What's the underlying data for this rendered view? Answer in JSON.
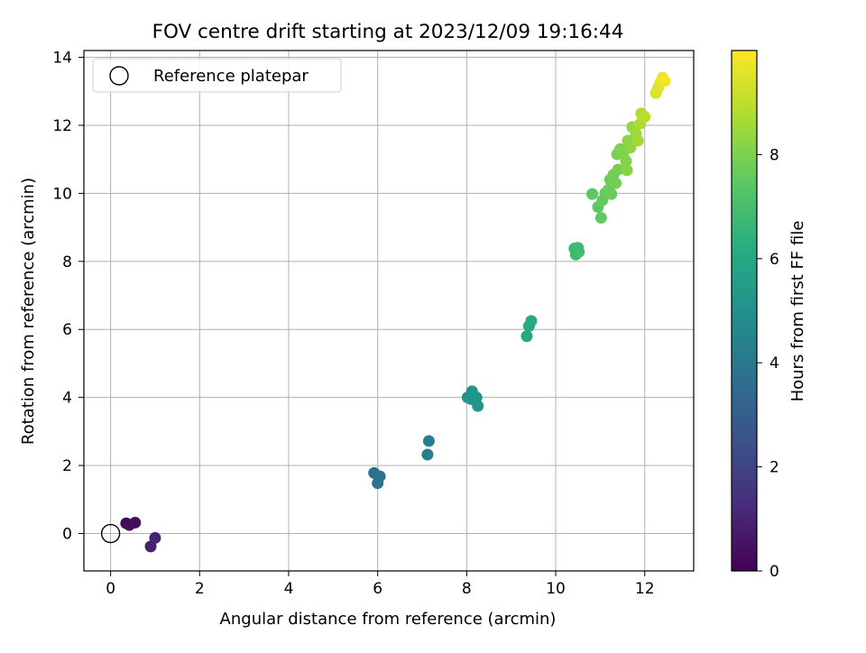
{
  "chart_data": {
    "type": "scatter",
    "title": "FOV centre drift starting at 2023/12/09 19:16:44",
    "xlabel": "Angular distance from reference (arcmin)",
    "ylabel": "Rotation from reference (arcmin)",
    "xlim": [
      -0.6,
      13.1
    ],
    "ylim": [
      -1.1,
      14.2
    ],
    "xticks": [
      0,
      2,
      4,
      6,
      8,
      10,
      12
    ],
    "yticks": [
      0,
      2,
      4,
      6,
      8,
      10,
      12,
      14
    ],
    "grid": true,
    "legend": {
      "position": "top-left",
      "entries": [
        "Reference platepar"
      ]
    },
    "reference": {
      "x": 0,
      "y": 0
    },
    "colorbar": {
      "label": "Hours from first FF file",
      "range": [
        0,
        10
      ],
      "ticks": [
        0,
        2,
        4,
        6,
        8
      ],
      "colormap": "viridis"
    },
    "points": [
      {
        "x": 0.35,
        "y": 0.3,
        "c": 0.2
      },
      {
        "x": 0.42,
        "y": 0.25,
        "c": 0.3
      },
      {
        "x": 0.55,
        "y": 0.32,
        "c": 0.4
      },
      {
        "x": 0.9,
        "y": -0.38,
        "c": 0.9
      },
      {
        "x": 1.0,
        "y": -0.13,
        "c": 1.0
      },
      {
        "x": 5.92,
        "y": 1.78,
        "c": 3.6
      },
      {
        "x": 6.05,
        "y": 1.68,
        "c": 3.7
      },
      {
        "x": 6.0,
        "y": 1.48,
        "c": 3.8
      },
      {
        "x": 7.15,
        "y": 2.72,
        "c": 4.2
      },
      {
        "x": 7.12,
        "y": 2.32,
        "c": 4.3
      },
      {
        "x": 8.02,
        "y": 4.0,
        "c": 5.0
      },
      {
        "x": 8.12,
        "y": 4.18,
        "c": 5.05
      },
      {
        "x": 8.22,
        "y": 4.0,
        "c": 5.1
      },
      {
        "x": 8.25,
        "y": 3.75,
        "c": 5.15
      },
      {
        "x": 8.1,
        "y": 3.95,
        "c": 5.2
      },
      {
        "x": 9.35,
        "y": 5.8,
        "c": 5.9
      },
      {
        "x": 9.4,
        "y": 6.1,
        "c": 6.0
      },
      {
        "x": 9.45,
        "y": 6.25,
        "c": 6.05
      },
      {
        "x": 10.42,
        "y": 8.38,
        "c": 6.7
      },
      {
        "x": 10.5,
        "y": 8.4,
        "c": 6.75
      },
      {
        "x": 10.45,
        "y": 8.2,
        "c": 6.8
      },
      {
        "x": 10.52,
        "y": 8.28,
        "c": 6.85
      },
      {
        "x": 10.82,
        "y": 9.98,
        "c": 7.4
      },
      {
        "x": 10.95,
        "y": 9.6,
        "c": 7.45
      },
      {
        "x": 11.02,
        "y": 9.28,
        "c": 7.5
      },
      {
        "x": 11.05,
        "y": 9.8,
        "c": 7.55
      },
      {
        "x": 11.12,
        "y": 10.02,
        "c": 7.6
      },
      {
        "x": 11.25,
        "y": 9.98,
        "c": 7.65
      },
      {
        "x": 11.18,
        "y": 10.1,
        "c": 7.7
      },
      {
        "x": 11.22,
        "y": 10.4,
        "c": 7.75
      },
      {
        "x": 11.3,
        "y": 10.55,
        "c": 7.8
      },
      {
        "x": 11.35,
        "y": 10.3,
        "c": 7.85
      },
      {
        "x": 11.4,
        "y": 10.7,
        "c": 7.9
      },
      {
        "x": 11.38,
        "y": 11.15,
        "c": 7.95
      },
      {
        "x": 11.45,
        "y": 11.3,
        "c": 8.0
      },
      {
        "x": 11.52,
        "y": 11.2,
        "c": 8.05
      },
      {
        "x": 11.58,
        "y": 10.95,
        "c": 8.1
      },
      {
        "x": 11.6,
        "y": 10.68,
        "c": 8.15
      },
      {
        "x": 11.62,
        "y": 11.55,
        "c": 8.2
      },
      {
        "x": 11.68,
        "y": 11.35,
        "c": 8.3
      },
      {
        "x": 11.72,
        "y": 11.95,
        "c": 8.4
      },
      {
        "x": 11.8,
        "y": 11.75,
        "c": 8.5
      },
      {
        "x": 11.85,
        "y": 11.55,
        "c": 8.6
      },
      {
        "x": 11.9,
        "y": 12.05,
        "c": 8.7
      },
      {
        "x": 11.92,
        "y": 12.35,
        "c": 8.8
      },
      {
        "x": 12.0,
        "y": 12.25,
        "c": 8.9
      },
      {
        "x": 12.25,
        "y": 12.95,
        "c": 9.4
      },
      {
        "x": 12.3,
        "y": 13.1,
        "c": 9.5
      },
      {
        "x": 12.35,
        "y": 13.25,
        "c": 9.6
      },
      {
        "x": 12.4,
        "y": 13.4,
        "c": 9.7
      },
      {
        "x": 12.45,
        "y": 13.3,
        "c": 9.8
      }
    ]
  }
}
